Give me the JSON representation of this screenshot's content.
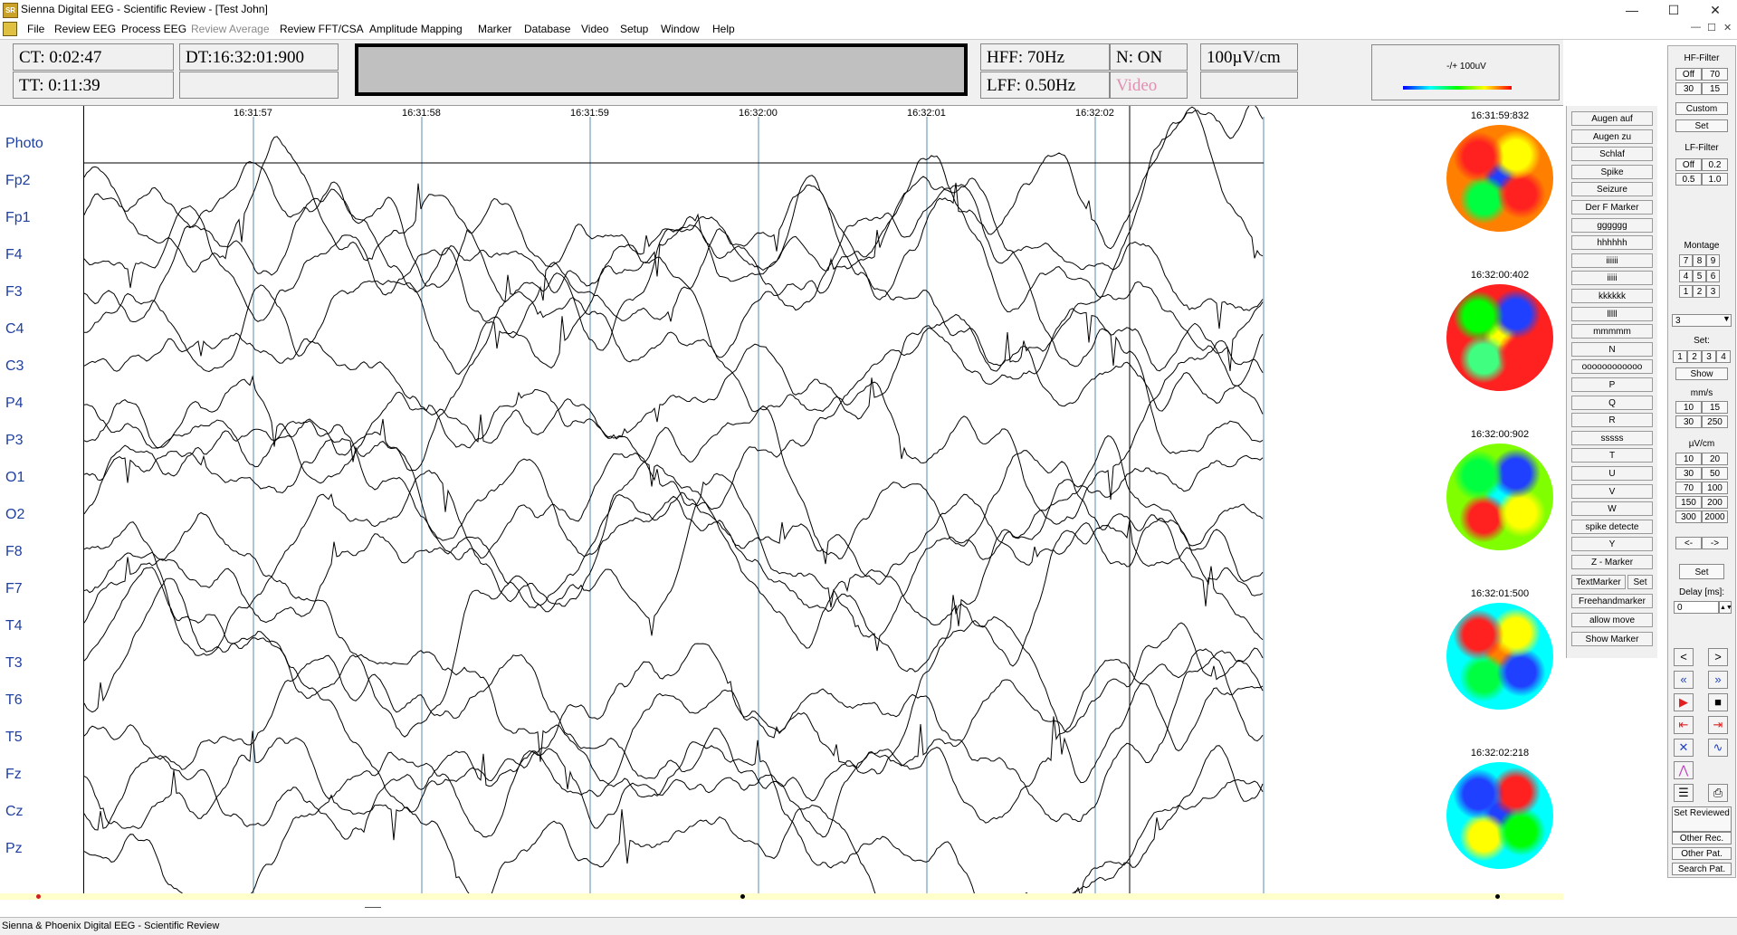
{
  "window": {
    "title": "Sienna Digital EEG - Scientific Review - [Test John]",
    "min": "—",
    "max": "☐",
    "close": "✕"
  },
  "menu": [
    {
      "label": "File",
      "disabled": false
    },
    {
      "label": "Review EEG",
      "disabled": false
    },
    {
      "label": "Process EEG",
      "disabled": false
    },
    {
      "label": "Review Average",
      "disabled": true
    },
    {
      "label": "Review FFT/CSA",
      "disabled": false
    },
    {
      "label": "Amplitude Mapping",
      "disabled": false
    },
    {
      "label": "Marker",
      "disabled": false
    },
    {
      "label": "Database",
      "disabled": false
    },
    {
      "label": "Video",
      "disabled": false
    },
    {
      "label": "Setup",
      "disabled": false
    },
    {
      "label": "Window",
      "disabled": false
    },
    {
      "label": "Help",
      "disabled": false
    }
  ],
  "header": {
    "ct": "CT: 0:02:47",
    "tt": "TT: 0:11:39",
    "dt": "DT:16:32:01:900",
    "hff": "HFF: 70Hz",
    "lff": "LFF: 0.50Hz",
    "notch": "N:  ON",
    "video": "Video",
    "sensitivity": "100µV/cm",
    "legend": "-/+ 100uV"
  },
  "channels": [
    "Photo",
    "Fp2",
    "Fp1",
    "F4",
    "F3",
    "C4",
    "C3",
    "P4",
    "P3",
    "O1",
    "O2",
    "F8",
    "F7",
    "T4",
    "T3",
    "T6",
    "T5",
    "Fz",
    "Cz",
    "Pz"
  ],
  "time_labels": [
    "16:31:57",
    "16:31:58",
    "16:31:59",
    "16:32:00",
    "16:32:01",
    "16:32:02"
  ],
  "maps": [
    {
      "time": "16:31:59:832",
      "colors": [
        "#ff2020",
        "#ffff00",
        "#ff2020",
        "#00ff40",
        "#2040ff",
        "#ff8000"
      ]
    },
    {
      "time": "16:32:00:402",
      "colors": [
        "#00ff00",
        "#2040ff",
        "#ff2020",
        "#40ff80",
        "#ffff00",
        "#ff2020"
      ]
    },
    {
      "time": "16:32:00:902",
      "colors": [
        "#00ff40",
        "#2040ff",
        "#ffff00",
        "#ff2020",
        "#00ffff",
        "#80ff00"
      ]
    },
    {
      "time": "16:32:01:500",
      "colors": [
        "#ff2020",
        "#ffff00",
        "#2040ff",
        "#00ff40",
        "#ff8000",
        "#00ffff"
      ]
    },
    {
      "time": "16:32:02:218",
      "colors": [
        "#2040ff",
        "#ff2020",
        "#00ff00",
        "#ffff00",
        "#2040ff",
        "#00ffff"
      ]
    }
  ],
  "marker_buttons": [
    "Augen auf",
    "Augen zu",
    "Schlaf",
    "Spike",
    "Seizure",
    "Der F Marker",
    "gggggg",
    "hhhhhh",
    "iiiiii",
    "iiiii",
    "kkkkkk",
    "lllll",
    "mmmmm",
    "N",
    "oooooooooooo",
    "P",
    "Q",
    "R",
    "sssss",
    "T",
    "U",
    "V",
    "W",
    "spike detecte",
    "Y",
    "Z - Marker"
  ],
  "textmarker": "TextMarker",
  "textmarker_set": "Set",
  "freehand": "Freehandmarker",
  "allow_move": "allow move",
  "show_marker": "Show Marker",
  "right_panel": {
    "hf_title": "HF-Filter",
    "hf": [
      "Off",
      "70",
      "30",
      "15"
    ],
    "custom": "Custom",
    "set": "Set",
    "lf_title": "LF-Filter",
    "lf": [
      "Off",
      "0.2",
      "0.5",
      "1.0"
    ],
    "montage_title": "Montage",
    "montage": [
      "7",
      "8",
      "9",
      "4",
      "5",
      "6",
      "1",
      "2",
      "3"
    ],
    "montage_select": "3",
    "set_title": "Set:",
    "sets": [
      "1",
      "2",
      "3",
      "4"
    ],
    "show": "Show",
    "speed_title": "mm/s",
    "speeds": [
      "10",
      "15",
      "30",
      "250"
    ],
    "uv_title": "µV/cm",
    "uvs": [
      "10",
      "20",
      "30",
      "50",
      "70",
      "100",
      "150",
      "200",
      "300",
      "2000"
    ],
    "arrows": [
      "<-",
      "->"
    ],
    "set2": "Set",
    "delay_title": "Delay [ms]:",
    "delay_value": "0",
    "set_reviewed": "Set Reviewed",
    "other_rec": "Other Rec.",
    "other_pat": "Other Pat.",
    "search_pat": "Search Pat."
  },
  "status": "Sienna & Phoenix Digital EEG - Scientific Review"
}
